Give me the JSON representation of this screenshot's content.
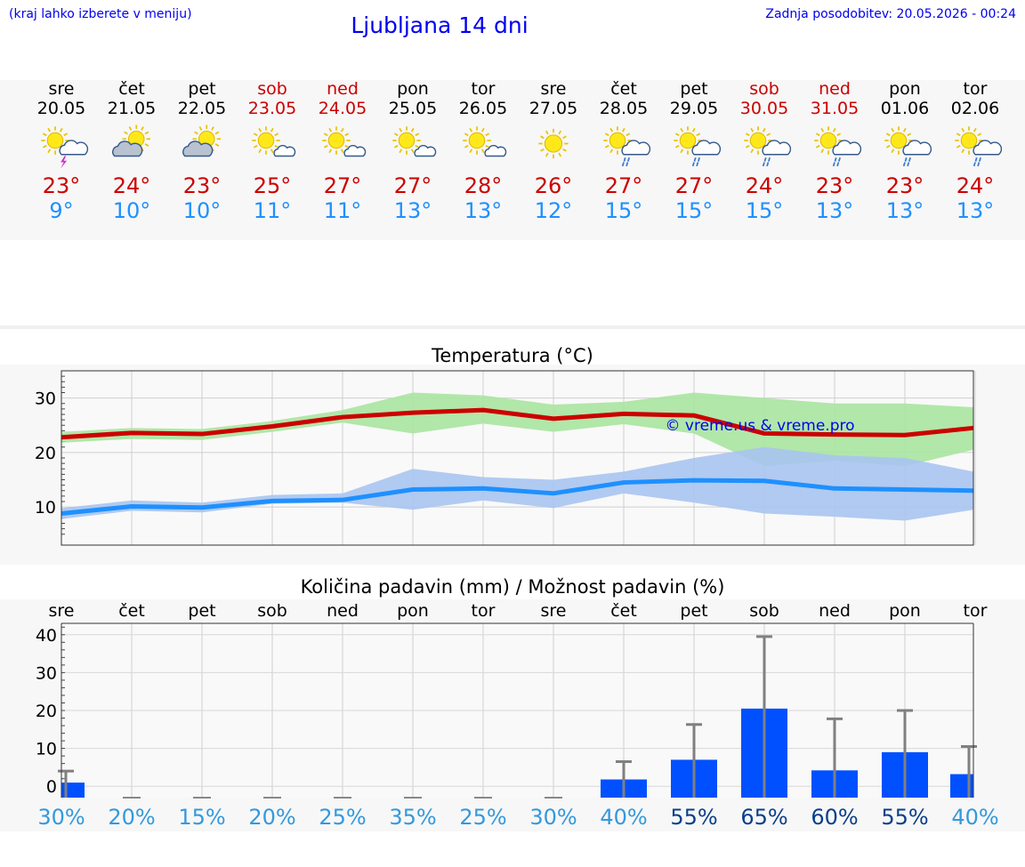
{
  "header": {
    "hint": "(kraj lahko izberete v meniju)",
    "title": "Ljubljana 14 dni",
    "updated": "Zadnja posodobitev: 20.05.2026 - 00:24"
  },
  "colors": {
    "link": "#0000ee",
    "max_temp": "#cc0000",
    "min_temp": "#1e90ff",
    "weekend": "#cc0000",
    "max_band": "#a8e4a0",
    "min_band": "#a8c4f0",
    "precip_bar": "#0050ff",
    "precip_err": "#808080",
    "pct_light": "#3399dd",
    "pct_dark": "#0a3f8a"
  },
  "days": [
    {
      "name": "sre",
      "date": "20.05",
      "weekend": false,
      "icon": "sun-cloud-thunder-icon",
      "max": "23°",
      "min": "9°"
    },
    {
      "name": "čet",
      "date": "21.05",
      "weekend": false,
      "icon": "sun-cloudy-icon",
      "max": "24°",
      "min": "10°"
    },
    {
      "name": "pet",
      "date": "22.05",
      "weekend": false,
      "icon": "sun-cloudy-icon",
      "max": "23°",
      "min": "10°"
    },
    {
      "name": "sob",
      "date": "23.05",
      "weekend": true,
      "icon": "sun-small-cloud-icon",
      "max": "25°",
      "min": "11°"
    },
    {
      "name": "ned",
      "date": "24.05",
      "weekend": true,
      "icon": "sun-small-cloud-icon",
      "max": "27°",
      "min": "11°"
    },
    {
      "name": "pon",
      "date": "25.05",
      "weekend": false,
      "icon": "sun-small-cloud-icon",
      "max": "27°",
      "min": "13°"
    },
    {
      "name": "tor",
      "date": "26.05",
      "weekend": false,
      "icon": "sun-small-cloud-icon",
      "max": "28°",
      "min": "13°"
    },
    {
      "name": "sre",
      "date": "27.05",
      "weekend": false,
      "icon": "sun-icon",
      "max": "26°",
      "min": "12°"
    },
    {
      "name": "čet",
      "date": "28.05",
      "weekend": false,
      "icon": "sun-cloud-rain-icon",
      "max": "27°",
      "min": "15°"
    },
    {
      "name": "pet",
      "date": "29.05",
      "weekend": false,
      "icon": "sun-cloud-rain-icon",
      "max": "27°",
      "min": "15°"
    },
    {
      "name": "sob",
      "date": "30.05",
      "weekend": true,
      "icon": "sun-cloud-rain-icon",
      "max": "24°",
      "min": "15°"
    },
    {
      "name": "ned",
      "date": "31.05",
      "weekend": true,
      "icon": "sun-cloud-rain-icon",
      "max": "23°",
      "min": "13°"
    },
    {
      "name": "pon",
      "date": "01.06",
      "weekend": false,
      "icon": "sun-cloud-rain-icon",
      "max": "23°",
      "min": "13°"
    },
    {
      "name": "tor",
      "date": "02.06",
      "weekend": false,
      "icon": "sun-cloud-rain-icon",
      "max": "24°",
      "min": "13°"
    }
  ],
  "chart_data": [
    {
      "type": "line",
      "title": "Temperatura (°C)",
      "watermark": "© vreme.us & vreme.pro",
      "ylim": [
        3,
        35
      ],
      "yticks": [
        10,
        20,
        30
      ],
      "grid": true,
      "series": [
        {
          "key": "max",
          "values": [
            22.8,
            23.6,
            23.4,
            24.8,
            26.5,
            27.3,
            27.8,
            26.2,
            27.1,
            26.8,
            23.5,
            23.3,
            23.2,
            24.5
          ],
          "band_low": [
            21.8,
            22.5,
            22.3,
            23.8,
            25.5,
            23.5,
            25.3,
            23.8,
            25.2,
            23.5,
            17.5,
            18.5,
            17.5,
            20.5
          ],
          "band_high": [
            23.8,
            24.5,
            24.3,
            25.8,
            27.8,
            31.0,
            30.5,
            28.8,
            29.3,
            31.0,
            30.0,
            29.0,
            29.0,
            28.3
          ]
        },
        {
          "key": "min",
          "values": [
            8.8,
            10.1,
            9.9,
            11.1,
            11.3,
            13.2,
            13.4,
            12.5,
            14.5,
            14.9,
            14.8,
            13.4,
            13.2,
            13.0
          ],
          "band_low": [
            7.8,
            9.3,
            9.0,
            10.6,
            10.8,
            9.5,
            11.2,
            9.8,
            12.5,
            10.8,
            8.8,
            8.2,
            7.5,
            9.5
          ],
          "band_high": [
            9.8,
            11.2,
            10.8,
            12.2,
            12.5,
            17.0,
            15.5,
            15.0,
            16.5,
            19.0,
            21.0,
            19.5,
            19.0,
            16.5
          ]
        }
      ]
    },
    {
      "type": "bar",
      "title": "Količina padavin (mm) / Možnost padavin (%)",
      "categories": [
        "sre",
        "čet",
        "pet",
        "sob",
        "ned",
        "pon",
        "tor",
        "sre",
        "čet",
        "pet",
        "sob",
        "ned",
        "pon",
        "tor"
      ],
      "ylim": [
        -3,
        43
      ],
      "yticks": [
        0,
        10,
        20,
        30,
        40
      ],
      "values": [
        0.5,
        0,
        0,
        0,
        0,
        0,
        0,
        0,
        1.8,
        7,
        20.5,
        4.2,
        9,
        3.2
      ],
      "err_high": [
        4,
        0,
        0,
        0,
        0,
        0,
        0,
        0,
        6.5,
        16.3,
        39.5,
        17.8,
        20,
        10.5
      ],
      "probability": [
        "30%",
        "20%",
        "15%",
        "20%",
        "25%",
        "35%",
        "25%",
        "30%",
        "40%",
        "55%",
        "65%",
        "60%",
        "55%",
        "40%"
      ],
      "probability_level": [
        30,
        20,
        15,
        20,
        25,
        35,
        25,
        30,
        40,
        55,
        65,
        60,
        55,
        40
      ]
    }
  ]
}
